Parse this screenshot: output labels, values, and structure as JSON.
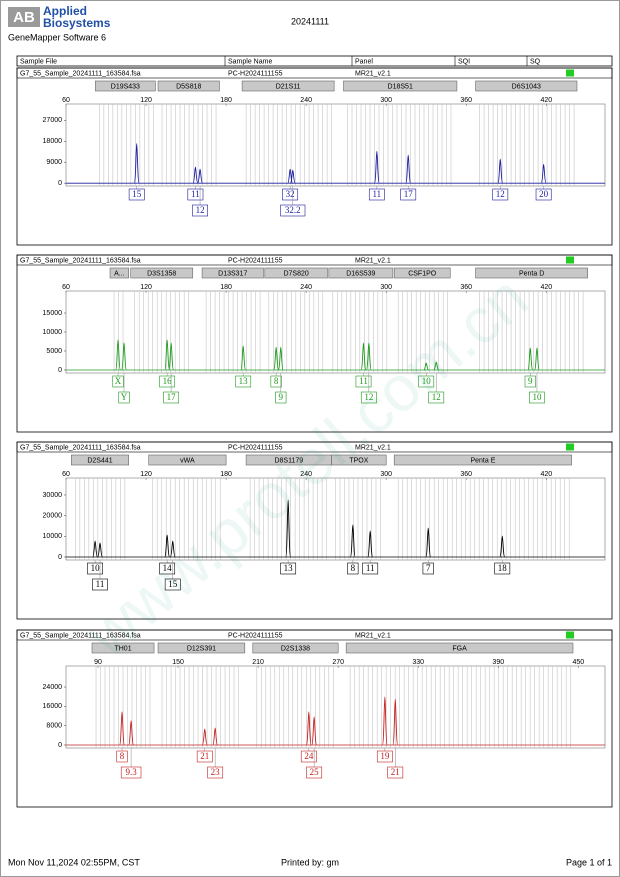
{
  "header": {
    "logo_mark": "AB",
    "logo_line1": "Applied",
    "logo_line2": "Biosystems",
    "software": "GeneMapper Software 6",
    "date": "20241111"
  },
  "table_header": [
    "Sample File",
    "Sample Name",
    "Panel",
    "SQI",
    "SQ"
  ],
  "panels": [
    {
      "sample_file": "G7_55_Sample_20241111_163584.fsa",
      "sample_name": "PC-H2024111155",
      "panel": "MR21_v2.1",
      "color": "#1c1ca0",
      "markers": [
        {
          "name": "D19S433",
          "range": [
            82,
            127
          ]
        },
        {
          "name": "D5S818",
          "range": [
            129,
            175
          ]
        },
        {
          "name": "D21S11",
          "range": [
            192,
            261
          ]
        },
        {
          "name": "D18S51",
          "range": [
            268,
            353
          ]
        },
        {
          "name": "D6S1043",
          "range": [
            367,
            443
          ]
        }
      ],
      "xlim": [
        60,
        464
      ],
      "xticks": [
        60,
        120,
        180,
        240,
        300,
        360,
        420
      ],
      "ylim": [
        -1200,
        34000
      ],
      "yticks": [
        0,
        9000,
        18000,
        27000
      ],
      "peaks": [
        {
          "x": 113,
          "height": 17000,
          "allele": "15"
        },
        {
          "x": 157,
          "height": 6900,
          "allele": "11"
        },
        {
          "x": 160.5,
          "height": 6000,
          "allele": "12"
        },
        {
          "x": 228,
          "height": 6000,
          "allele": "32"
        },
        {
          "x": 230,
          "height": 5600,
          "allele": "32.2"
        },
        {
          "x": 293,
          "height": 13700,
          "allele": "11"
        },
        {
          "x": 316.5,
          "height": 12000,
          "allele": "17"
        },
        {
          "x": 385.5,
          "height": 10300,
          "allele": "12"
        },
        {
          "x": 418,
          "height": 8100,
          "allele": "20"
        }
      ]
    },
    {
      "sample_file": "G7_55_Sample_20241111_163584.fsa",
      "sample_name": "PC-H2024111155",
      "panel": "MR21_v2.1",
      "color": "#1f9a1f",
      "markers": [
        {
          "name": "A...",
          "range": [
            93,
            107
          ]
        },
        {
          "name": "D3S1358",
          "range": [
            108.5,
            155
          ]
        },
        {
          "name": "D13S317",
          "range": [
            162,
            208
          ]
        },
        {
          "name": "D7S820",
          "range": [
            209,
            256
          ]
        },
        {
          "name": "D16S539",
          "range": [
            257,
            305
          ]
        },
        {
          "name": "CSF1PO",
          "range": [
            306,
            348
          ]
        },
        {
          "name": "Penta D",
          "range": [
            367,
            451
          ]
        }
      ],
      "xlim": [
        60,
        464
      ],
      "xticks": [
        60,
        120,
        180,
        240,
        300,
        360,
        420
      ],
      "ylim": [
        -800,
        20800
      ],
      "yticks": [
        0,
        5000,
        10000,
        15000
      ],
      "peaks": [
        {
          "x": 99,
          "height": 7900,
          "allele": "X"
        },
        {
          "x": 103.5,
          "height": 7100,
          "allele": "Y"
        },
        {
          "x": 135.8,
          "height": 7900,
          "allele": "16"
        },
        {
          "x": 138.8,
          "height": 7100,
          "allele": "17"
        },
        {
          "x": 192.8,
          "height": 6300,
          "allele": "13"
        },
        {
          "x": 217.5,
          "height": 6000,
          "allele": "8"
        },
        {
          "x": 221,
          "height": 6000,
          "allele": "9"
        },
        {
          "x": 283,
          "height": 7100,
          "allele": "11"
        },
        {
          "x": 287,
          "height": 7100,
          "allele": "12"
        },
        {
          "x": 330,
          "height": 1800,
          "allele": "10"
        },
        {
          "x": 337.5,
          "height": 2100,
          "allele": "12"
        },
        {
          "x": 408,
          "height": 5800,
          "allele": "9"
        },
        {
          "x": 413,
          "height": 5800,
          "allele": "10"
        }
      ]
    },
    {
      "sample_file": "G7_55_Sample_20241111_163584.fsa",
      "sample_name": "PC-H2024111155",
      "panel": "MR21_v2.1",
      "color": "#000000",
      "markers": [
        {
          "name": "D2S441",
          "range": [
            64,
            107
          ]
        },
        {
          "name": "vWA",
          "range": [
            122,
            180
          ]
        },
        {
          "name": "D8S1179",
          "range": [
            195,
            259
          ]
        },
        {
          "name": "TPOX",
          "range": [
            259,
            300
          ]
        },
        {
          "name": "Penta E",
          "range": [
            306,
            439
          ]
        }
      ],
      "xlim": [
        60,
        464
      ],
      "xticks": [
        60,
        120,
        180,
        240,
        300,
        360,
        420
      ],
      "ylim": [
        -1450,
        38200
      ],
      "yticks": [
        0,
        10000,
        20000,
        30000
      ],
      "peaks": [
        {
          "x": 81.8,
          "height": 7700,
          "allele": "10"
        },
        {
          "x": 85.5,
          "height": 6800,
          "allele": "11"
        },
        {
          "x": 135.8,
          "height": 10600,
          "allele": "14"
        },
        {
          "x": 140,
          "height": 7700,
          "allele": "15"
        },
        {
          "x": 226.5,
          "height": 27500,
          "allele": "13"
        },
        {
          "x": 275,
          "height": 15500,
          "allele": "8"
        },
        {
          "x": 288,
          "height": 12600,
          "allele": "11"
        },
        {
          "x": 331.5,
          "height": 14000,
          "allele": "7"
        },
        {
          "x": 387,
          "height": 10100,
          "allele": "18"
        }
      ]
    },
    {
      "sample_file": "G7_55_Sample_20241111_163584.fsa",
      "sample_name": "PC-H2024111155",
      "panel": "MR21_v2.1",
      "color": "#c42020",
      "markers": [
        {
          "name": "TH01",
          "range": [
            85.5,
            132
          ]
        },
        {
          "name": "D12S391",
          "range": [
            135,
            200
          ]
        },
        {
          "name": "D2S1338",
          "range": [
            206,
            270
          ]
        },
        {
          "name": "FGA",
          "range": [
            276,
            446
          ]
        }
      ],
      "xlim": [
        66,
        470
      ],
      "xticks": [
        90,
        150,
        210,
        270,
        330,
        390,
        450
      ],
      "ylim": [
        -1240,
        32700
      ],
      "yticks": [
        0,
        8000,
        16000,
        24000
      ],
      "peaks": [
        {
          "x": 108,
          "height": 13700,
          "allele": "8"
        },
        {
          "x": 114.8,
          "height": 10000,
          "allele": "9.3"
        },
        {
          "x": 170,
          "height": 6600,
          "allele": "21"
        },
        {
          "x": 177.8,
          "height": 7000,
          "allele": "23"
        },
        {
          "x": 248,
          "height": 13700,
          "allele": "24"
        },
        {
          "x": 252,
          "height": 11600,
          "allele": "25"
        },
        {
          "x": 305,
          "height": 19900,
          "allele": "19"
        },
        {
          "x": 312.8,
          "height": 19000,
          "allele": "21"
        }
      ]
    }
  ],
  "footer": {
    "printed_on": "Mon Nov 11,2024 02:55PM, CST",
    "printed_by": "Printed by: gm",
    "page": "Page 1 of 1"
  },
  "watermark": "www.protell.com.cn"
}
